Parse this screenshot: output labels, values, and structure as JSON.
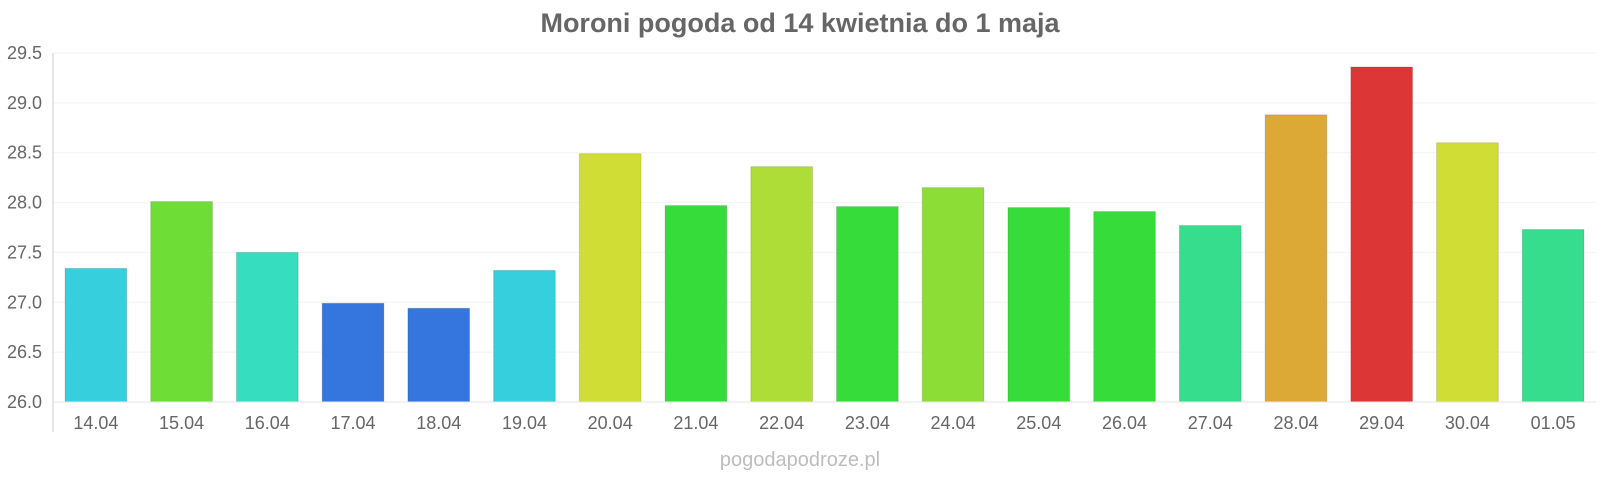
{
  "chart_data": {
    "type": "bar",
    "title": "Moroni pogoda od 14 kwietnia do 1 maja",
    "xlabel": "",
    "ylabel": "",
    "ylim": [
      26.0,
      29.5
    ],
    "yticks": [
      "26.0",
      "26.5",
      "27.0",
      "27.5",
      "28.0",
      "28.5",
      "29.0",
      "29.5"
    ],
    "grid": true,
    "legend": "none",
    "categories": [
      "14.04",
      "15.04",
      "16.04",
      "17.04",
      "18.04",
      "19.04",
      "20.04",
      "21.04",
      "22.04",
      "23.04",
      "24.04",
      "25.04",
      "26.04",
      "27.04",
      "28.04",
      "29.04",
      "30.04",
      "01.05"
    ],
    "values": [
      27.34,
      28.01,
      27.5,
      26.99,
      26.94,
      27.32,
      28.49,
      27.97,
      28.36,
      27.96,
      28.15,
      27.95,
      27.91,
      27.77,
      28.88,
      29.36,
      28.6,
      27.73
    ],
    "colors": [
      "#36cfdd",
      "#6edd36",
      "#36ddbf",
      "#3476dd",
      "#3476dd",
      "#36cfdd",
      "#cfdd34",
      "#36dd3a",
      "#addd36",
      "#36dd3a",
      "#8cdd36",
      "#36dd3a",
      "#36dd3a",
      "#36dd8c",
      "#dda936",
      "#dd3636",
      "#cfdd34",
      "#36dd8c"
    ]
  },
  "watermark": "pogodapodroze.pl"
}
